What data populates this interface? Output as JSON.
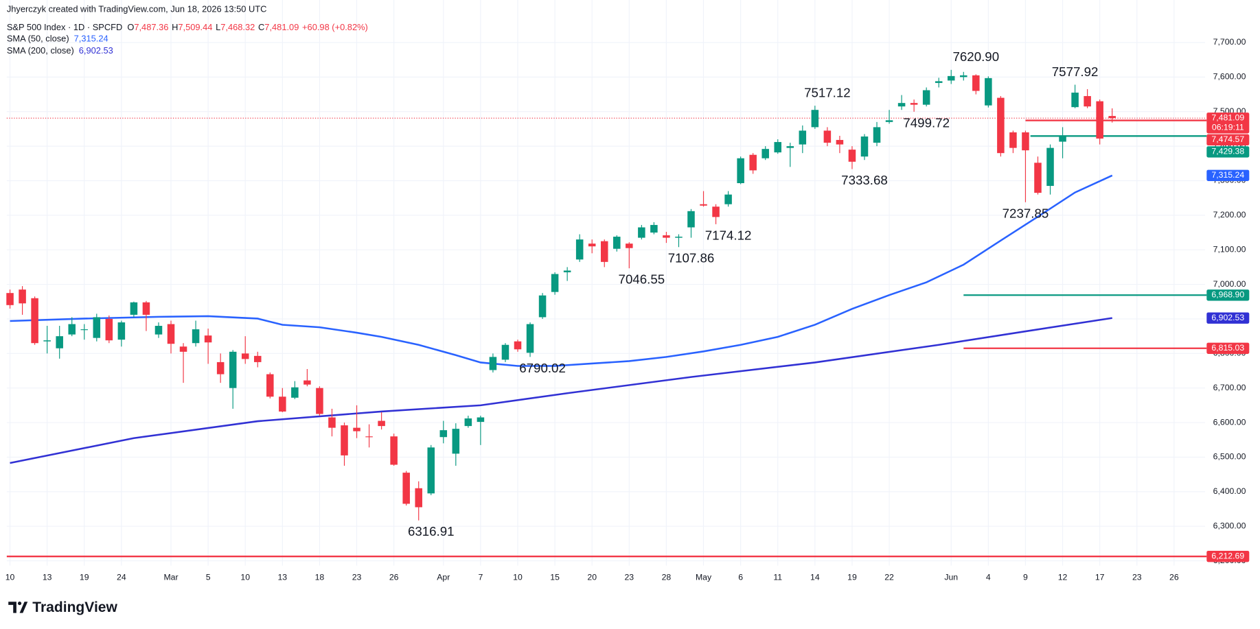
{
  "chart_data": {
    "type": "candlestick",
    "attribution": "Jhyerczyk created with TradingView.com, Jun 18, 2026 13:50 UTC",
    "title": "S&P 500 Index · 1D · SPCFD",
    "ohlc_legend": [
      {
        "key": "O",
        "value": "7,487.36"
      },
      {
        "key": "H",
        "value": "7,509.44"
      },
      {
        "key": "L",
        "value": "7,468.32"
      },
      {
        "key": "C",
        "value": "7,481.09"
      }
    ],
    "change": "+60.98 (+0.82%)",
    "up_color": "#089981",
    "down_color": "#f23645",
    "open": [
      6975,
      6985,
      6960,
      6835,
      6815,
      6855,
      6868,
      6845,
      6900,
      6840,
      6912,
      6948,
      6855,
      6885,
      6820,
      6830,
      6852,
      6775,
      6700,
      6800,
      6793,
      6740,
      6675,
      6672,
      6722,
      6700,
      6615,
      6592,
      6585,
      6560,
      6605,
      6560,
      6455,
      6410,
      6395,
      6558,
      6510,
      6590,
      6602,
      6752,
      6782,
      6835,
      6802,
      6905,
      6978,
      7035,
      7072,
      7118,
      7125,
      7103,
      7118,
      7135,
      7150,
      7142,
      7135,
      7165,
      7232,
      7225,
      7232,
      7293,
      7375,
      7365,
      7382,
      7395,
      7405,
      7455,
      7445,
      7418,
      7390,
      7370,
      7410,
      7470,
      7515,
      7525,
      7520,
      7583,
      7590,
      7600,
      7605,
      7518,
      7540,
      7440,
      7440,
      7352,
      7285,
      7413,
      7513,
      7545,
      7530,
      7487.36
    ],
    "high": [
      6985,
      6995,
      6965,
      6880,
      6880,
      6905,
      6885,
      6915,
      6910,
      6895,
      6950,
      6952,
      6890,
      6895,
      6830,
      6895,
      6872,
      6800,
      6810,
      6850,
      6805,
      6745,
      6700,
      6720,
      6755,
      6705,
      6640,
      6600,
      6650,
      6595,
      6630,
      6568,
      6460,
      6430,
      6535,
      6605,
      6598,
      6620,
      6620,
      6800,
      6830,
      6840,
      6890,
      6975,
      7035,
      7050,
      7145,
      7130,
      7130,
      7142,
      7122,
      7172,
      7180,
      7152,
      7145,
      7218,
      7270,
      7232,
      7270,
      7370,
      7380,
      7400,
      7420,
      7410,
      7460,
      7517.12,
      7455,
      7430,
      7400,
      7435,
      7470,
      7505,
      7548,
      7535,
      7570,
      7598,
      7620.9,
      7615,
      7608,
      7602,
      7545,
      7445,
      7445,
      7370,
      7405,
      7455,
      7577.92,
      7565,
      7535,
      7509.44
    ],
    "low": [
      6930,
      6912,
      6825,
      6800,
      6785,
      6850,
      6840,
      6835,
      6830,
      6820,
      6905,
      6865,
      6845,
      6800,
      6715,
      6820,
      6770,
      6715,
      6640,
      6770,
      6760,
      6670,
      6630,
      6668,
      6705,
      6620,
      6560,
      6475,
      6555,
      6528,
      6580,
      6475,
      6360,
      6316.91,
      6390,
      6540,
      6475,
      6585,
      6535,
      6745,
      6775,
      6805,
      6790,
      6900,
      6970,
      7010,
      7065,
      7090,
      7050,
      7095,
      7046.55,
      7130,
      7145,
      7120,
      7107.86,
      7135,
      7225,
      7174.12,
      7225,
      7290,
      7320,
      7360,
      7378,
      7340,
      7380,
      7450,
      7400,
      7380,
      7333.68,
      7360,
      7400,
      7465,
      7505,
      7499.72,
      7515,
      7570,
      7580,
      7590,
      7550,
      7512,
      7370,
      7380,
      7237.85,
      7260,
      7260,
      7365,
      7510,
      7510,
      7405,
      7468.32
    ],
    "close": [
      6940,
      6945,
      6830,
      6838,
      6850,
      6885,
      6870,
      6905,
      6838,
      6890,
      6948,
      6912,
      6880,
      6828,
      6805,
      6870,
      6832,
      6740,
      6805,
      6784,
      6775,
      6675,
      6632,
      6702,
      6710,
      6625,
      6585,
      6505,
      6575,
      6558,
      6590,
      6478,
      6365,
      6355,
      6528,
      6578,
      6582,
      6612,
      6615,
      6790,
      6825,
      6812,
      6885,
      6968,
      7030,
      7040,
      7130,
      7110,
      7065,
      7138,
      7105,
      7165,
      7172,
      7135,
      7138,
      7212,
      7228,
      7195,
      7260,
      7365,
      7330,
      7392,
      7412,
      7400,
      7445,
      7505,
      7410,
      7405,
      7355,
      7428,
      7455,
      7475,
      7525,
      7520,
      7562,
      7588,
      7603,
      7605,
      7560,
      7597,
      7380,
      7395,
      7388,
      7265,
      7395,
      7430,
      7555,
      7515,
      7422,
      7481.09
    ],
    "last_price_label": "7,481.09",
    "countdown": "06:19:11",
    "series": [
      {
        "name": "SMA (50, close)",
        "color": "#2962ff",
        "value_label": "7,315.24",
        "x": [
          0,
          6,
          12,
          16,
          20,
          22,
          25,
          28,
          30,
          33,
          36,
          38,
          41,
          44,
          47,
          50,
          53,
          56,
          59,
          62,
          65,
          68,
          71,
          74,
          77,
          80,
          83,
          86,
          89
        ],
        "values": [
          6894,
          6901,
          6906,
          6908,
          6901,
          6883,
          6876,
          6860,
          6848,
          6825,
          6795,
          6774,
          6764,
          6764,
          6771,
          6778,
          6790,
          6806,
          6825,
          6848,
          6883,
          6929,
          6969,
          7006,
          7057,
          7127,
          7196,
          7266,
          7315.24
        ]
      },
      {
        "name": "SMA (200, close)",
        "color": "#3131d4",
        "value_label": "6,902.53",
        "x": [
          0,
          10,
          20,
          30,
          38,
          45,
          55,
          65,
          75,
          82,
          89
        ],
        "values": [
          6483,
          6555,
          6604,
          6632,
          6650,
          6685,
          6732,
          6774,
          6825,
          6864,
          6902.53
        ]
      }
    ],
    "levels": [
      {
        "value": 7474.57,
        "label": "7,474.57",
        "color": "#f23645",
        "from": 82
      },
      {
        "value": 7429.38,
        "label": "7,429.38",
        "color": "#089981",
        "from": 82.4
      },
      {
        "value": 6968.9,
        "label": "6,968.90",
        "color": "#089981",
        "from": 77
      },
      {
        "value": 6815.03,
        "label": "6,815.03",
        "color": "#f23645",
        "from": 77
      },
      {
        "value": 6212.69,
        "label": "6,212.69",
        "color": "#f23645",
        "from": -0.26
      }
    ],
    "annotations": [
      {
        "value": 7620.9,
        "label": "7620.90",
        "x": 78
      },
      {
        "value": 7577.92,
        "label": "7577.92",
        "x": 86
      },
      {
        "value": 7517.12,
        "label": "7517.12",
        "x": 66
      },
      {
        "value": 7499.72,
        "label": "7499.72",
        "x": 74
      },
      {
        "value": 7333.68,
        "label": "7333.68",
        "x": 69
      },
      {
        "value": 7237.85,
        "label": "7237.85",
        "x": 82
      },
      {
        "value": 7174.12,
        "label": "7174.12",
        "x": 58
      },
      {
        "value": 7107.86,
        "label": "7107.86",
        "x": 55
      },
      {
        "value": 7046.55,
        "label": "7046.55",
        "x": 51
      },
      {
        "value": 6790.02,
        "label": "6790.02",
        "x": 43
      },
      {
        "value": 6316.91,
        "label": "6316.91",
        "x": 34
      }
    ],
    "xlim": [
      -0.26,
      96.5
    ],
    "ylim": [
      6186,
      7772
    ],
    "xticks": [
      {
        "value": 0,
        "label": "10"
      },
      {
        "value": 3,
        "label": "13"
      },
      {
        "value": 6,
        "label": "19"
      },
      {
        "value": 9,
        "label": "24"
      },
      {
        "value": 13,
        "label": "Mar"
      },
      {
        "value": 16,
        "label": "5"
      },
      {
        "value": 19,
        "label": "10"
      },
      {
        "value": 22,
        "label": "13"
      },
      {
        "value": 25,
        "label": "18"
      },
      {
        "value": 28,
        "label": "23"
      },
      {
        "value": 31,
        "label": "26"
      },
      {
        "value": 35,
        "label": "Apr"
      },
      {
        "value": 38,
        "label": "7"
      },
      {
        "value": 41,
        "label": "10"
      },
      {
        "value": 44,
        "label": "15"
      },
      {
        "value": 47,
        "label": "20"
      },
      {
        "value": 50,
        "label": "23"
      },
      {
        "value": 53,
        "label": "28"
      },
      {
        "value": 56,
        "label": "May"
      },
      {
        "value": 59,
        "label": "6"
      },
      {
        "value": 62,
        "label": "11"
      },
      {
        "value": 65,
        "label": "14"
      },
      {
        "value": 68,
        "label": "19"
      },
      {
        "value": 71,
        "label": "22"
      },
      {
        "value": 76,
        "label": "Jun"
      },
      {
        "value": 79,
        "label": "4"
      },
      {
        "value": 82,
        "label": "9"
      },
      {
        "value": 85,
        "label": "12"
      },
      {
        "value": 88,
        "label": "17"
      },
      {
        "value": 91,
        "label": "23"
      },
      {
        "value": 94,
        "label": "26"
      }
    ],
    "yticks": [
      {
        "value": 6200,
        "label": "6,200.00"
      },
      {
        "value": 6300,
        "label": "6,300.00"
      },
      {
        "value": 6400,
        "label": "6,400.00"
      },
      {
        "value": 6500,
        "label": "6,500.00"
      },
      {
        "value": 6600,
        "label": "6,600.00"
      },
      {
        "value": 6700,
        "label": "6,700.00"
      },
      {
        "value": 6800,
        "label": "6,800.00"
      },
      {
        "value": 6900,
        "label": "6,900.00"
      },
      {
        "value": 7000,
        "label": "7,000.00"
      },
      {
        "value": 7100,
        "label": "7,100.00"
      },
      {
        "value": 7200,
        "label": "7,200.00"
      },
      {
        "value": 7300,
        "label": "7,300.00"
      },
      {
        "value": 7400,
        "label": "7,400.00"
      },
      {
        "value": 7500,
        "label": "7,500.00"
      },
      {
        "value": 7600,
        "label": "7,600.00"
      },
      {
        "value": 7700,
        "label": "7,700.00"
      }
    ],
    "grid": true
  },
  "footer": {
    "brand": "TradingView"
  }
}
